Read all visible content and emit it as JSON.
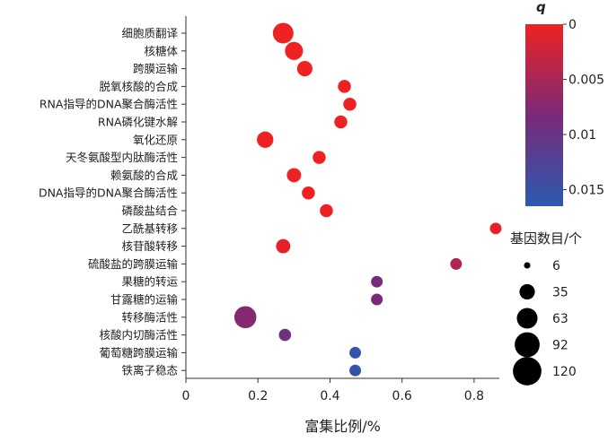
{
  "chart_data": {
    "type": "scatter",
    "title": "",
    "xlabel": "富集比例/%",
    "ylabel": "",
    "xlim": [
      0,
      0.87
    ],
    "xticks": [
      0,
      0.2,
      0.4,
      0.6,
      0.8
    ],
    "xtick_labels": [
      "0",
      "0.2",
      "0.4",
      "0.6",
      "0.8"
    ],
    "grid": false,
    "categories": [
      "细胞质翻译",
      "核糖体",
      "跨膜运输",
      "脱氧核酸的合成",
      "RNA指导的DNA聚合酶活性",
      "RNA磷化键水解",
      "氧化还原",
      "天冬氨酸型内肽酶活性",
      "赖氨酸的合成",
      "DNA指导的DNA聚合酶活性",
      "磷酸盐结合",
      "乙酰基转移",
      "核苷酸转移",
      "硫酸盐的跨膜运输",
      "果糖的转运",
      "甘露糖的运输",
      "转移酶活性",
      "核酸内切酶活性",
      "葡萄糖跨膜运输",
      "铁离子稳态"
    ],
    "points": [
      {
        "category": "细胞质翻译",
        "x": 0.27,
        "count": 63,
        "q": 0.0
      },
      {
        "category": "核糖体",
        "x": 0.3,
        "count": 48,
        "q": 0.0
      },
      {
        "category": "跨膜运输",
        "x": 0.33,
        "count": 35,
        "q": 0.0
      },
      {
        "category": "脱氧核酸的合成",
        "x": 0.44,
        "count": 25,
        "q": 0.0
      },
      {
        "category": "RNA指导的DNA聚合酶活性",
        "x": 0.455,
        "count": 25,
        "q": 0.0
      },
      {
        "category": "RNA磷化键水解",
        "x": 0.43,
        "count": 25,
        "q": 0.0
      },
      {
        "category": "氧化还原",
        "x": 0.22,
        "count": 40,
        "q": 0.0
      },
      {
        "category": "天冬氨酸型内肽酶活性",
        "x": 0.37,
        "count": 25,
        "q": 0.0
      },
      {
        "category": "赖氨酸的合成",
        "x": 0.3,
        "count": 30,
        "q": 0.0
      },
      {
        "category": "DNA指导的DNA聚合酶活性",
        "x": 0.34,
        "count": 25,
        "q": 0.0
      },
      {
        "category": "磷酸盐结合",
        "x": 0.39,
        "count": 25,
        "q": 0.0
      },
      {
        "category": "乙酰基转移",
        "x": 0.86,
        "count": 20,
        "q": 0.0005
      },
      {
        "category": "核苷酸转移",
        "x": 0.27,
        "count": 30,
        "q": 0.0005
      },
      {
        "category": "硫酸盐的跨膜运输",
        "x": 0.75,
        "count": 20,
        "q": 0.0045
      },
      {
        "category": "果糖的转运",
        "x": 0.53,
        "count": 20,
        "q": 0.0085
      },
      {
        "category": "甘露糖的运输",
        "x": 0.53,
        "count": 20,
        "q": 0.0085
      },
      {
        "category": "转移酶活性",
        "x": 0.165,
        "count": 72,
        "q": 0.0075
      },
      {
        "category": "核酸内切酶活性",
        "x": 0.275,
        "count": 22,
        "q": 0.0095
      },
      {
        "category": "葡萄糖跨膜运输",
        "x": 0.47,
        "count": 20,
        "q": 0.0155
      },
      {
        "category": "铁离子稳态",
        "x": 0.47,
        "count": 20,
        "q": 0.0155
      }
    ],
    "colorbar": {
      "title": "q",
      "range": [
        0,
        0.0165
      ],
      "ticks": [
        0,
        0.005,
        0.01,
        0.015
      ],
      "tick_labels": [
        "0",
        "0.005",
        "0.01",
        "0.015"
      ],
      "colors": [
        "#ee2222",
        "#7a2a78",
        "#2a5ab0"
      ]
    },
    "size_legend": {
      "title": "基因数目/个",
      "counts": [
        6,
        35,
        63,
        92,
        120
      ],
      "labels": [
        "6",
        "35",
        "63",
        "92",
        "120"
      ]
    }
  }
}
